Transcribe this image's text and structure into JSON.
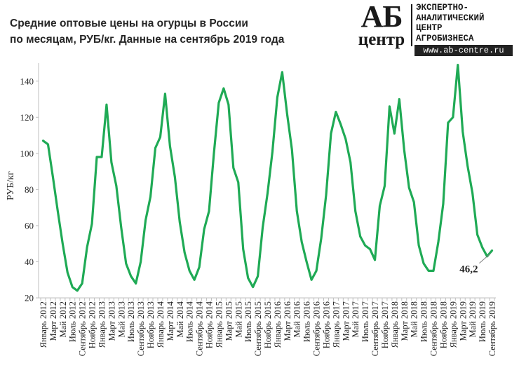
{
  "header": {
    "title_line1": "Средние оптовые цены на огурцы в России",
    "title_line2": "по месяцам, РУБ/кг. Данные на сентябрь  2019 года"
  },
  "logo": {
    "mark_top": "АБ",
    "mark_bottom": "центр",
    "lines": [
      "ЭКСПЕРТНО-",
      "АНАЛИТИЧЕСКИЙ",
      "ЦЕНТР",
      "АГРОБИЗНЕСА"
    ],
    "url": "www.ab-centre.ru"
  },
  "colors": {
    "line": "#1faa55",
    "axis": "#bfbfbf",
    "text": "#262626"
  },
  "chart_data": {
    "type": "line",
    "ylabel": "РУБ/кг",
    "ylim": [
      20,
      150
    ],
    "yticks": [
      20,
      40,
      60,
      80,
      100,
      120,
      140
    ],
    "grid": false,
    "x_tick_labels": [
      "Январь 2012",
      "Март 2012",
      "Май 2012",
      "Июль 2012",
      "Сентябрь 2012",
      "Ноябрь 2012",
      "Январь 2013",
      "Март 2013",
      "Май 2013",
      "Июль 2013",
      "Сентябрь 2013",
      "Ноябрь 2013",
      "Январь 2014",
      "Март 2014",
      "Май 2014",
      "Июль 2014",
      "Сентябрь 2014",
      "Ноябрь 2014",
      "Январь 2015",
      "Март 2015",
      "Май 2015",
      "Июль 2015",
      "Сентябрь 2015",
      "Ноябрь 2015",
      "Январь 2016",
      "Март 2016",
      "Май 2016",
      "Июль 2016",
      "Сентябрь 2016",
      "Ноябрь 2016",
      "Январь 2017",
      "Март 2017",
      "Май 2017",
      "Июль 2017",
      "Сентябрь 2017",
      "Ноябрь 2017",
      "Январь 2018",
      "Март 2018",
      "Май 2018",
      "Июль 2018",
      "Сентябрь 2018",
      "Ноябрь 2018",
      "Январь 2019",
      "Март 2019",
      "Май 2019",
      "Июль 2019",
      "Сентябрь 2019"
    ],
    "values": [
      107,
      105,
      87,
      68,
      50,
      34,
      26,
      24,
      28,
      48,
      61,
      98,
      98,
      127,
      95,
      82,
      59,
      39,
      32,
      28,
      40,
      63,
      76,
      103,
      109,
      133,
      104,
      87,
      62,
      45,
      35,
      30,
      37,
      58,
      68,
      100,
      128,
      136,
      127,
      92,
      84,
      47,
      31,
      26,
      32,
      59,
      78,
      101,
      131,
      145,
      122,
      102,
      68,
      51,
      40,
      30,
      35,
      53,
      77,
      111,
      123,
      116,
      108,
      95,
      68,
      54,
      49,
      47,
      41,
      71,
      82,
      126,
      111,
      130,
      102,
      81,
      73,
      49,
      39,
      35,
      35,
      51,
      72,
      117,
      120,
      149,
      112,
      93,
      78,
      55,
      48,
      43,
      46.2
    ],
    "annotation": {
      "label": "46,2",
      "value": 46.2,
      "x_label": "Сентябрь 2019"
    }
  }
}
